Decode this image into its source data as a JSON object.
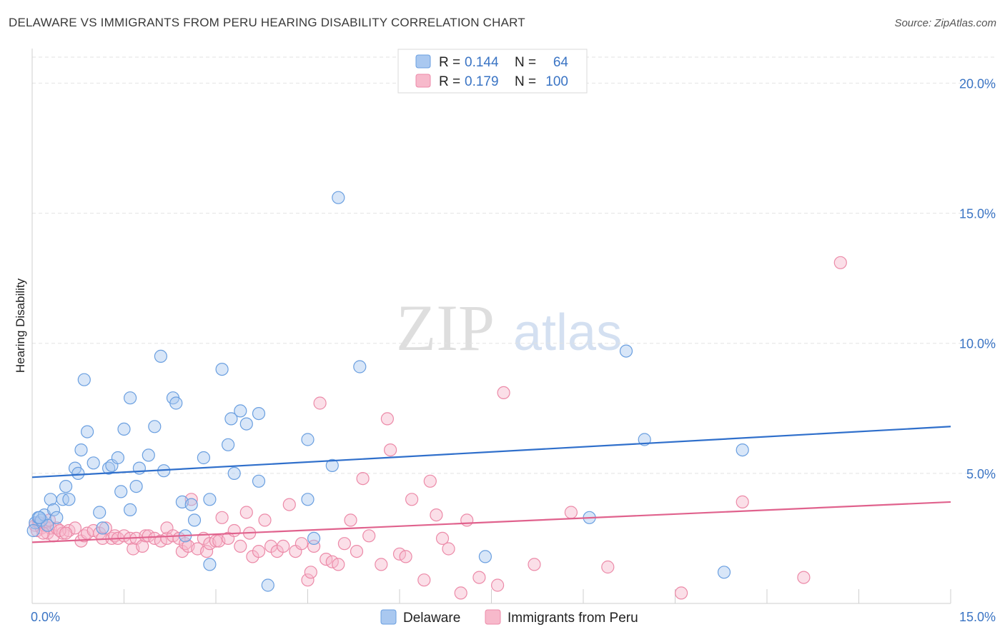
{
  "header": {
    "title": "DELAWARE VS IMMIGRANTS FROM PERU HEARING DISABILITY CORRELATION CHART",
    "source": "Source: ZipAtlas.com"
  },
  "watermark": {
    "zip": "ZIP",
    "atlas": "atlas"
  },
  "legend": {
    "rows": [
      {
        "r_label": "R = ",
        "r_value": "0.144",
        "n_label": "N = ",
        "n_value": "64",
        "color": "#a9c8f0",
        "stroke": "#6a9fe0"
      },
      {
        "r_label": "R = ",
        "r_value": "0.179",
        "n_label": "N = ",
        "n_value": "100",
        "color": "#f7b9cb",
        "stroke": "#ec8aa8"
      }
    ]
  },
  "bottom_legend": [
    {
      "label": "Delaware",
      "color": "#a9c8f0",
      "stroke": "#6a9fe0"
    },
    {
      "label": "Immigrants from Peru",
      "color": "#f7b9cb",
      "stroke": "#ec8aa8"
    }
  ],
  "chart_data": {
    "type": "scatter",
    "title": "DELAWARE VS IMMIGRANTS FROM PERU HEARING DISABILITY CORRELATION CHART",
    "xlabel": "",
    "ylabel": "Hearing Disability",
    "xlim": [
      0,
      15
    ],
    "ylim": [
      0,
      21
    ],
    "x_tick_labels": [
      "0.0%",
      "15.0%"
    ],
    "y_ticks": [
      5,
      10,
      15,
      20
    ],
    "y_tick_labels": [
      "5.0%",
      "10.0%",
      "15.0%",
      "20.0%"
    ],
    "grid": "horizontal dashed",
    "legend_position": "top-center",
    "series": [
      {
        "name": "Delaware",
        "color": "#6a9fe0",
        "trend": {
          "x": [
            0,
            15
          ],
          "y": [
            4.85,
            6.8
          ]
        },
        "points": [
          [
            0.05,
            3.1
          ],
          [
            0.1,
            3.3
          ],
          [
            0.15,
            3.2
          ],
          [
            0.2,
            3.4
          ],
          [
            0.25,
            3.0
          ],
          [
            0.3,
            4.0
          ],
          [
            0.35,
            3.6
          ],
          [
            0.4,
            3.3
          ],
          [
            0.5,
            4.0
          ],
          [
            0.55,
            4.5
          ],
          [
            0.6,
            4.0
          ],
          [
            0.7,
            5.2
          ],
          [
            0.75,
            5.0
          ],
          [
            0.85,
            8.6
          ],
          [
            0.9,
            6.6
          ],
          [
            0.8,
            5.9
          ],
          [
            1.0,
            5.4
          ],
          [
            1.1,
            3.5
          ],
          [
            1.15,
            2.9
          ],
          [
            1.25,
            5.2
          ],
          [
            1.3,
            5.3
          ],
          [
            1.4,
            5.6
          ],
          [
            1.45,
            4.3
          ],
          [
            1.5,
            6.7
          ],
          [
            1.6,
            7.9
          ],
          [
            1.7,
            4.5
          ],
          [
            1.75,
            5.2
          ],
          [
            1.6,
            3.6
          ],
          [
            1.9,
            5.7
          ],
          [
            2.0,
            6.8
          ],
          [
            2.1,
            9.5
          ],
          [
            2.15,
            5.1
          ],
          [
            2.3,
            7.9
          ],
          [
            2.35,
            7.7
          ],
          [
            2.45,
            3.9
          ],
          [
            2.5,
            2.6
          ],
          [
            2.6,
            3.8
          ],
          [
            2.65,
            3.2
          ],
          [
            2.8,
            5.6
          ],
          [
            2.9,
            4.0
          ],
          [
            2.9,
            1.5
          ],
          [
            3.1,
            9.0
          ],
          [
            3.2,
            6.1
          ],
          [
            3.25,
            7.1
          ],
          [
            3.3,
            5.0
          ],
          [
            3.4,
            7.4
          ],
          [
            3.5,
            6.9
          ],
          [
            3.7,
            7.3
          ],
          [
            3.7,
            4.7
          ],
          [
            3.85,
            0.7
          ],
          [
            4.5,
            6.3
          ],
          [
            4.5,
            4.0
          ],
          [
            4.6,
            2.5
          ],
          [
            4.9,
            5.3
          ],
          [
            5.0,
            15.6
          ],
          [
            5.35,
            9.1
          ],
          [
            7.4,
            1.8
          ],
          [
            9.1,
            3.3
          ],
          [
            9.7,
            9.7
          ],
          [
            10.0,
            6.3
          ],
          [
            11.3,
            1.2
          ],
          [
            11.6,
            5.9
          ],
          [
            0.02,
            2.8
          ],
          [
            0.12,
            3.3
          ]
        ]
      },
      {
        "name": "Immigrants from Peru",
        "color": "#ec8aa8",
        "trend": {
          "x": [
            0,
            15
          ],
          "y": [
            2.35,
            3.9
          ]
        },
        "points": [
          [
            0.05,
            3.0
          ],
          [
            0.08,
            2.8
          ],
          [
            0.1,
            3.1
          ],
          [
            0.15,
            2.9
          ],
          [
            0.2,
            3.0
          ],
          [
            0.25,
            2.7
          ],
          [
            0.3,
            2.9
          ],
          [
            0.35,
            2.6
          ],
          [
            0.4,
            2.9
          ],
          [
            0.5,
            2.7
          ],
          [
            0.6,
            2.8
          ],
          [
            0.7,
            2.9
          ],
          [
            0.8,
            2.4
          ],
          [
            0.85,
            2.6
          ],
          [
            0.9,
            2.7
          ],
          [
            1.0,
            2.8
          ],
          [
            1.1,
            2.7
          ],
          [
            1.15,
            2.5
          ],
          [
            1.2,
            2.9
          ],
          [
            1.3,
            2.5
          ],
          [
            1.35,
            2.6
          ],
          [
            1.4,
            2.5
          ],
          [
            1.5,
            2.6
          ],
          [
            1.6,
            2.5
          ],
          [
            1.65,
            2.1
          ],
          [
            1.7,
            2.5
          ],
          [
            1.8,
            2.2
          ],
          [
            1.85,
            2.6
          ],
          [
            1.9,
            2.6
          ],
          [
            2.0,
            2.5
          ],
          [
            2.1,
            2.4
          ],
          [
            2.2,
            2.5
          ],
          [
            2.2,
            2.9
          ],
          [
            2.3,
            2.6
          ],
          [
            2.4,
            2.5
          ],
          [
            2.45,
            2.0
          ],
          [
            2.5,
            2.3
          ],
          [
            2.55,
            2.2
          ],
          [
            2.6,
            4.0
          ],
          [
            2.7,
            2.1
          ],
          [
            2.8,
            2.5
          ],
          [
            2.85,
            2.0
          ],
          [
            2.9,
            2.3
          ],
          [
            3.0,
            2.4
          ],
          [
            3.05,
            2.4
          ],
          [
            3.1,
            3.3
          ],
          [
            3.2,
            2.5
          ],
          [
            3.3,
            2.8
          ],
          [
            3.4,
            2.2
          ],
          [
            3.5,
            3.5
          ],
          [
            3.55,
            2.7
          ],
          [
            3.6,
            1.8
          ],
          [
            3.7,
            2.0
          ],
          [
            3.8,
            3.2
          ],
          [
            3.9,
            2.2
          ],
          [
            4.0,
            2.0
          ],
          [
            4.1,
            2.2
          ],
          [
            4.2,
            3.8
          ],
          [
            4.3,
            2.0
          ],
          [
            4.4,
            2.3
          ],
          [
            4.5,
            0.9
          ],
          [
            4.55,
            1.2
          ],
          [
            4.6,
            2.2
          ],
          [
            4.7,
            7.7
          ],
          [
            4.8,
            1.7
          ],
          [
            4.9,
            1.6
          ],
          [
            5.0,
            1.5
          ],
          [
            5.1,
            2.3
          ],
          [
            5.2,
            3.2
          ],
          [
            5.3,
            2.0
          ],
          [
            5.4,
            4.8
          ],
          [
            5.5,
            2.6
          ],
          [
            5.7,
            1.5
          ],
          [
            5.8,
            7.1
          ],
          [
            5.85,
            5.9
          ],
          [
            6.0,
            1.9
          ],
          [
            6.1,
            1.8
          ],
          [
            6.2,
            4.0
          ],
          [
            6.4,
            0.9
          ],
          [
            6.5,
            4.7
          ],
          [
            6.6,
            3.4
          ],
          [
            6.7,
            2.5
          ],
          [
            6.8,
            2.1
          ],
          [
            7.0,
            0.4
          ],
          [
            7.1,
            3.2
          ],
          [
            7.3,
            1.0
          ],
          [
            7.6,
            0.7
          ],
          [
            7.7,
            8.1
          ],
          [
            8.2,
            1.5
          ],
          [
            8.8,
            3.5
          ],
          [
            9.4,
            1.4
          ],
          [
            10.6,
            0.4
          ],
          [
            11.6,
            3.9
          ],
          [
            12.6,
            1.0
          ],
          [
            13.2,
            13.1
          ],
          [
            0.12,
            3.1
          ],
          [
            0.18,
            2.7
          ],
          [
            0.28,
            3.2
          ],
          [
            0.45,
            2.8
          ],
          [
            0.55,
            2.7
          ]
        ]
      }
    ]
  }
}
